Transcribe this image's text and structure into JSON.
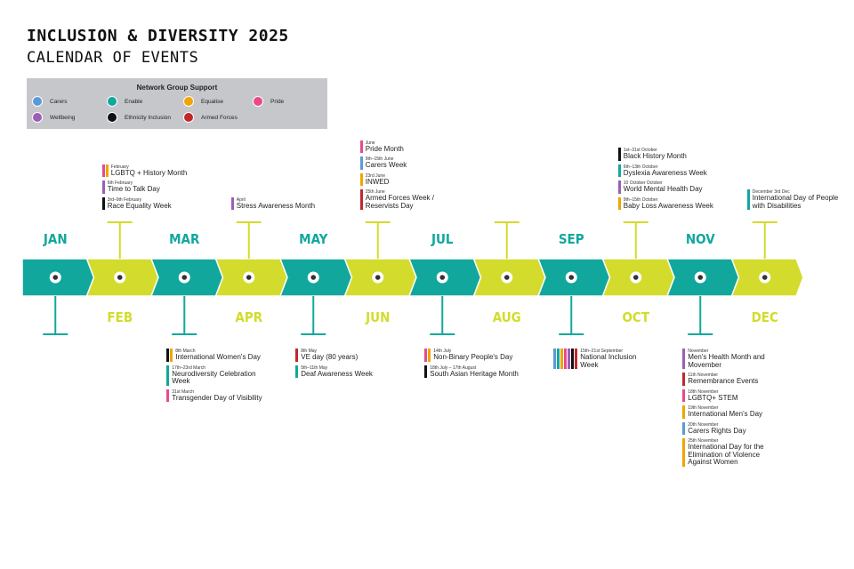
{
  "header": {
    "title": "INCLUSION & DIVERSITY 2025",
    "subtitle": "CALENDAR OF EVENTS"
  },
  "legend": {
    "title": "Network Group Support",
    "items": [
      {
        "label": "Carers",
        "color": "#5b9bd5"
      },
      {
        "label": "Enable",
        "color": "#12a79d"
      },
      {
        "label": "Equalise",
        "color": "#f0a500"
      },
      {
        "label": "Pride",
        "color": "#e84a8a"
      },
      {
        "label": "Wellbeing",
        "color": "#9b5fb5"
      },
      {
        "label": "Ethnicity Inclusion",
        "color": "#111111"
      },
      {
        "label": "Armed Forces",
        "color": "#c0282d"
      }
    ]
  },
  "months": [
    {
      "label": "JAN",
      "events": []
    },
    {
      "label": "FEB",
      "events": [
        {
          "date": "February",
          "name": "LGBTQ + History Month",
          "colors": [
            "#e84a8a",
            "#f0a500"
          ]
        },
        {
          "date": "6th February",
          "name": "Time to Talk Day",
          "colors": [
            "#9b5fb5"
          ]
        },
        {
          "date": "3rd–9th February",
          "name": "Race Equality Week",
          "colors": [
            "#111111"
          ]
        }
      ]
    },
    {
      "label": "MAR",
      "events": [
        {
          "date": "8th March",
          "name": "International Women's Day",
          "colors": [
            "#111111",
            "#f0a500"
          ]
        },
        {
          "date": "17th–23rd March",
          "name": "Neurodiversity Celebration Week",
          "colors": [
            "#12a79d"
          ]
        },
        {
          "date": "31st March",
          "name": "Transgender Day of Visibility",
          "colors": [
            "#e84a8a"
          ]
        }
      ]
    },
    {
      "label": "APR",
      "events": [
        {
          "date": "April",
          "name": "Stress Awareness Month",
          "colors": [
            "#9b5fb5"
          ]
        }
      ]
    },
    {
      "label": "MAY",
      "events": [
        {
          "date": "8th May",
          "name": "VE day (80 years)",
          "colors": [
            "#c0282d"
          ]
        },
        {
          "date": "5th–11th May",
          "name": "Deaf Awareness Week",
          "colors": [
            "#12a79d"
          ]
        }
      ]
    },
    {
      "label": "JUN",
      "events": [
        {
          "date": "June",
          "name": "Pride Month",
          "colors": [
            "#e84a8a"
          ]
        },
        {
          "date": "9th–15th June",
          "name": "Carers Week",
          "colors": [
            "#5b9bd5"
          ]
        },
        {
          "date": "23rd June",
          "name": "INWED",
          "colors": [
            "#f0a500"
          ]
        },
        {
          "date": "25th June",
          "name": "Armed Forces Week / Reservists Day",
          "colors": [
            "#c0282d"
          ]
        }
      ]
    },
    {
      "label": "JUL",
      "events": [
        {
          "date": "14th July",
          "name": "Non-Binary People's Day",
          "colors": [
            "#e84a8a",
            "#f0a500"
          ]
        },
        {
          "date": "18th July – 17th August",
          "name": "South Asian Heritage Month",
          "colors": [
            "#111111"
          ]
        }
      ]
    },
    {
      "label": "AUG",
      "events": []
    },
    {
      "label": "SEP",
      "events": [
        {
          "date": "15th–21st September",
          "name": "National Inclusion Week",
          "colors": [
            "#5b9bd5",
            "#12a79d",
            "#f0a500",
            "#e84a8a",
            "#9b5fb5",
            "#111111",
            "#c0282d"
          ]
        }
      ]
    },
    {
      "label": "OCT",
      "events": [
        {
          "date": "1st–31st October",
          "name": "Black History Month",
          "colors": [
            "#111111"
          ]
        },
        {
          "date": "6th–13th October",
          "name": "Dyslexia Awareness Week",
          "colors": [
            "#12a79d"
          ]
        },
        {
          "date": "10 October October",
          "name": "World Mental Health Day",
          "colors": [
            "#9b5fb5"
          ]
        },
        {
          "date": "9th–15th October",
          "name": "Baby Loss Awareness Week",
          "colors": [
            "#f0a500"
          ]
        }
      ]
    },
    {
      "label": "NOV",
      "events": [
        {
          "date": "November",
          "name": "Men's Health Month and Movember",
          "colors": [
            "#9b5fb5"
          ]
        },
        {
          "date": "11th November",
          "name": "Remembrance Events",
          "colors": [
            "#c0282d"
          ]
        },
        {
          "date": "18th November",
          "name": "LGBTQ+ STEM",
          "colors": [
            "#e84a8a"
          ]
        },
        {
          "date": "19th November",
          "name": "International Men's Day",
          "colors": [
            "#f0a500"
          ]
        },
        {
          "date": "20th November",
          "name": "Carers Rights Day",
          "colors": [
            "#5b9bd5"
          ]
        },
        {
          "date": "25th November",
          "name": "International Day for the Elimination of Violence Against Women",
          "colors": [
            "#f0a500"
          ]
        }
      ]
    },
    {
      "label": "DEC",
      "events": [
        {
          "date": "December 3rd Dec",
          "name": "International Day of People with Disabilities",
          "colors": [
            "#12a79d"
          ]
        }
      ]
    }
  ]
}
